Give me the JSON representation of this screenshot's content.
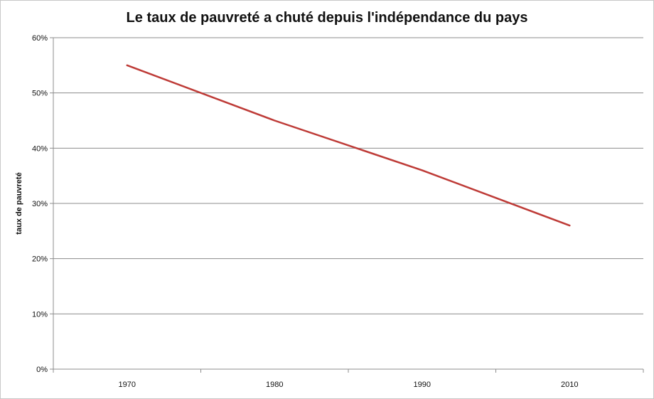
{
  "chart_data": {
    "type": "line",
    "title": "Le taux de pauvreté a chuté depuis l'indépendance du pays",
    "xlabel": "",
    "ylabel": "taux de pauvreté",
    "categories": [
      "1970",
      "1980",
      "1990",
      "2010"
    ],
    "series": [
      {
        "values": [
          55,
          45,
          36,
          26
        ],
        "color": "#be3b37"
      }
    ],
    "ylim": [
      0,
      60
    ],
    "yticks": [
      0,
      10,
      20,
      30,
      40,
      50,
      60
    ],
    "ytick_labels": [
      "0%",
      "10%",
      "20%",
      "30%",
      "40%",
      "50%",
      "60%"
    ],
    "grid": true,
    "legend": "none"
  },
  "colors": {
    "line": "#be3b37",
    "grid": "#8c8c8c",
    "axis": "#8c8c8c"
  }
}
